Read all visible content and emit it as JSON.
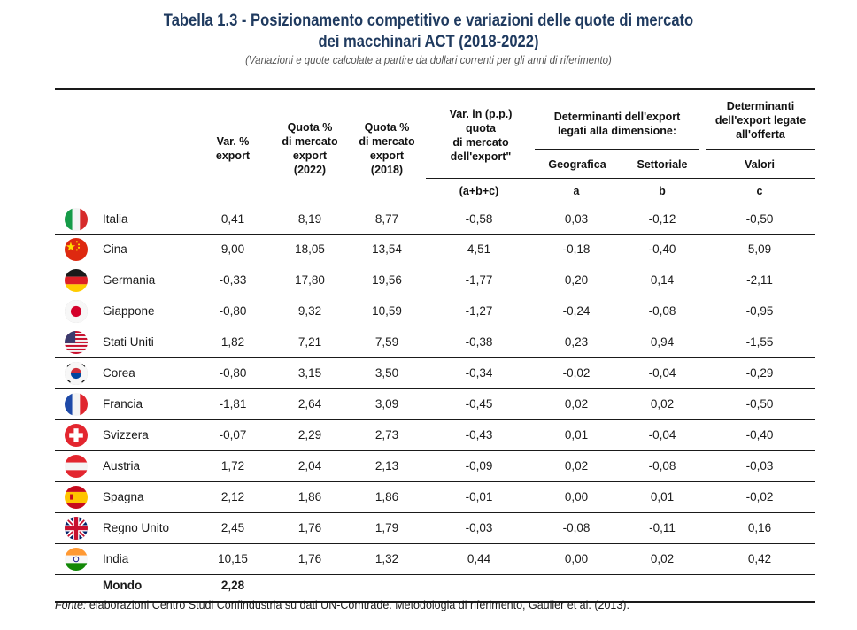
{
  "title_line1": "Tabella 1.3 - Posizionamento competitivo e variazioni delle quote di mercato",
  "title_line2": "dei macchinari ACT (2018-2022)",
  "subtitle": "(Variazioni e quote calcolate a partire da dollari correnti per gli anni di riferimento)",
  "headers": {
    "var_export": [
      "Var. %",
      "export"
    ],
    "quota_2022": [
      "Quota %",
      "di mercato",
      "export",
      "(2022)"
    ],
    "quota_2018": [
      "Quota %",
      "di mercato",
      "export",
      "(2018)"
    ],
    "var_pp": [
      "Var. in (p.p.)",
      "quota",
      "di mercato",
      "dell'export\""
    ],
    "det_dim": [
      "Determinanti dell'export",
      "legati alla dimensione:"
    ],
    "det_offerta": [
      "Determinanti",
      "dell'export legate",
      "all'offerta"
    ],
    "geografica": "Geografica",
    "settoriale": "Settoriale",
    "valori": "Valori",
    "abc": "(a+b+c)",
    "a": "a",
    "b": "b",
    "c": "c"
  },
  "rows": [
    {
      "country": "Italia",
      "flag": "italy-flag-icon",
      "var": "0,41",
      "q22": "8,19",
      "q18": "8,77",
      "vpp": "-0,58",
      "a": "0,03",
      "b": "-0,12",
      "c": "-0,50"
    },
    {
      "country": "Cina",
      "flag": "china-flag-icon",
      "var": "9,00",
      "q22": "18,05",
      "q18": "13,54",
      "vpp": "4,51",
      "a": "-0,18",
      "b": "-0,40",
      "c": "5,09"
    },
    {
      "country": "Germania",
      "flag": "germany-flag-icon",
      "var": "-0,33",
      "q22": "17,80",
      "q18": "19,56",
      "vpp": "-1,77",
      "a": "0,20",
      "b": "0,14",
      "c": "-2,11"
    },
    {
      "country": "Giappone",
      "flag": "japan-flag-icon",
      "var": "-0,80",
      "q22": "9,32",
      "q18": "10,59",
      "vpp": "-1,27",
      "a": "-0,24",
      "b": "-0,08",
      "c": "-0,95"
    },
    {
      "country": "Stati Uniti",
      "flag": "usa-flag-icon",
      "var": "1,82",
      "q22": "7,21",
      "q18": "7,59",
      "vpp": "-0,38",
      "a": "0,23",
      "b": "0,94",
      "c": "-1,55"
    },
    {
      "country": "Corea",
      "flag": "korea-flag-icon",
      "var": "-0,80",
      "q22": "3,15",
      "q18": "3,50",
      "vpp": "-0,34",
      "a": "-0,02",
      "b": "-0,04",
      "c": "-0,29"
    },
    {
      "country": "Francia",
      "flag": "france-flag-icon",
      "var": "-1,81",
      "q22": "2,64",
      "q18": "3,09",
      "vpp": "-0,45",
      "a": "0,02",
      "b": "0,02",
      "c": "-0,50"
    },
    {
      "country": "Svizzera",
      "flag": "switzerland-flag-icon",
      "var": "-0,07",
      "q22": "2,29",
      "q18": "2,73",
      "vpp": "-0,43",
      "a": "0,01",
      "b": "-0,04",
      "c": "-0,40"
    },
    {
      "country": "Austria",
      "flag": "austria-flag-icon",
      "var": "1,72",
      "q22": "2,04",
      "q18": "2,13",
      "vpp": "-0,09",
      "a": "0,02",
      "b": "-0,08",
      "c": "-0,03"
    },
    {
      "country": "Spagna",
      "flag": "spain-flag-icon",
      "var": "2,12",
      "q22": "1,86",
      "q18": "1,86",
      "vpp": "-0,01",
      "a": "0,00",
      "b": "0,01",
      "c": "-0,02"
    },
    {
      "country": "Regno Unito",
      "flag": "uk-flag-icon",
      "var": "2,45",
      "q22": "1,76",
      "q18": "1,79",
      "vpp": "-0,03",
      "a": "-0,08",
      "b": "-0,11",
      "c": "0,16"
    },
    {
      "country": "India",
      "flag": "india-flag-icon",
      "var": "10,15",
      "q22": "1,76",
      "q18": "1,32",
      "vpp": "0,44",
      "a": "0,00",
      "b": "0,02",
      "c": "0,42"
    }
  ],
  "total": {
    "label": "Mondo",
    "var": "2,28"
  },
  "source_label": "Fonte:",
  "source_text": " elaborazioni Centro Studi Confindustria su dati UN-Comtrade. Metodologia di riferimento, Gaulier et al. (2013)."
}
